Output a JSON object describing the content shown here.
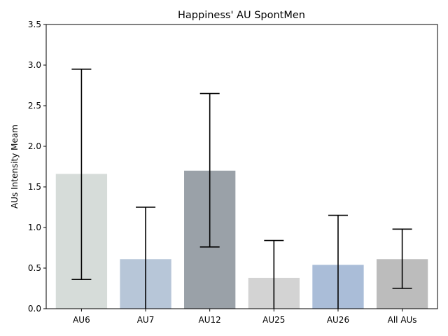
{
  "chart_data": {
    "type": "bar",
    "title": "Happiness' AU SpontMen",
    "xlabel": "",
    "ylabel": "AUs Intensity Meam",
    "categories": [
      "AU6",
      "AU7",
      "AU12",
      "AU25",
      "AU26",
      "All AUs"
    ],
    "values": [
      1.66,
      0.61,
      1.7,
      0.38,
      0.54,
      0.61
    ],
    "error_lower": [
      0.36,
      0.0,
      0.76,
      0.0,
      0.0,
      0.25
    ],
    "error_upper": [
      2.95,
      1.25,
      2.65,
      0.84,
      1.15,
      0.98
    ],
    "bar_colors": [
      "#d6dcd9",
      "#b7c6d8",
      "#9aa1a8",
      "#d3d3d3",
      "#aabdd8",
      "#bcbcbc"
    ],
    "ylim": [
      0,
      3.5
    ],
    "yticks": [
      "0.0",
      "0.5",
      "1.0",
      "1.5",
      "2.0",
      "2.5",
      "3.0",
      "3.5"
    ],
    "grid": false,
    "legend": "none"
  }
}
